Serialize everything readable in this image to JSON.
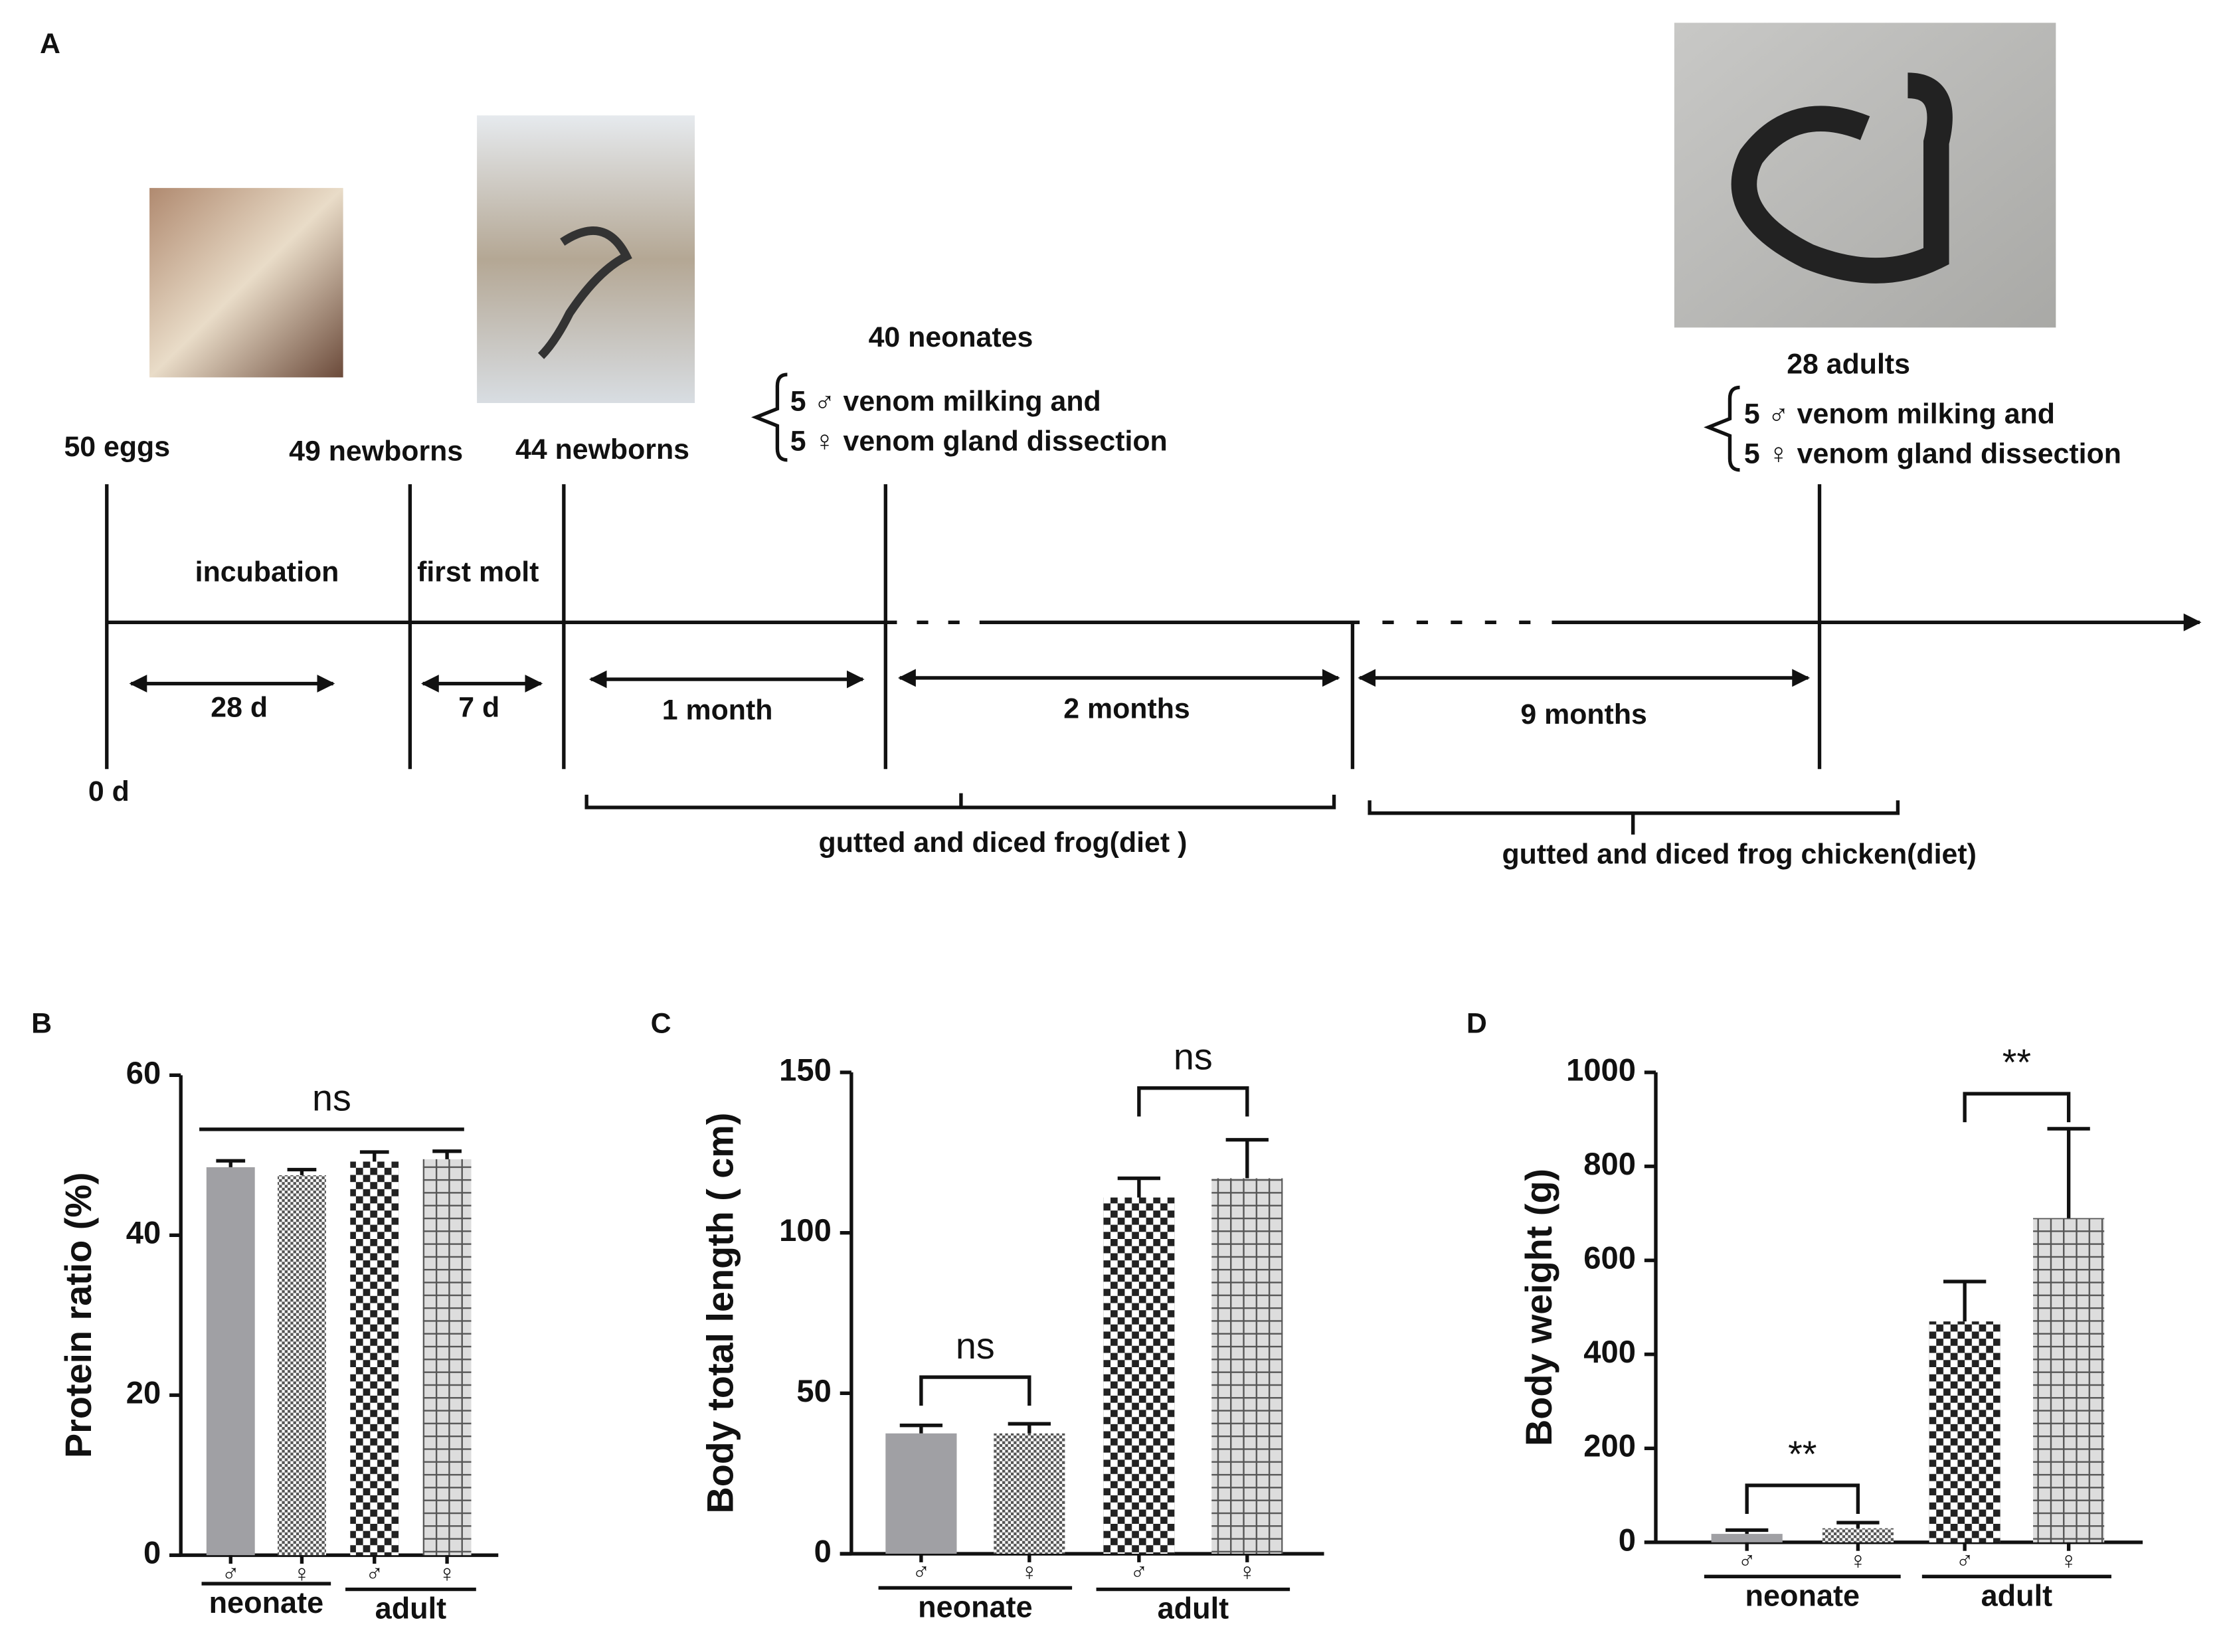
{
  "panel_labels": [
    "A",
    "B",
    "C",
    "D"
  ],
  "timeline": {
    "start": "0 d",
    "events": [
      "50 eggs",
      "49 newborns",
      "44 newborns",
      "40 neonates",
      "28 adults"
    ],
    "neonate_sampling": [
      "5 ♂ venom milking and",
      "5 ♀ venom gland dissection"
    ],
    "adult_sampling": [
      "5 ♂ venom milking and",
      "5 ♀ venom gland dissection"
    ],
    "phases": [
      "incubation",
      "first molt"
    ],
    "durations": [
      "28 d",
      "7 d",
      "1 month",
      "2 months",
      "9 months"
    ],
    "diets": [
      "gutted and diced frog(diet )",
      "gutted and diced frog chicken(diet)"
    ]
  },
  "chart_data": [
    {
      "type": "bar",
      "ylabel": "Protein  ratio (%)",
      "categories": [
        "♂",
        "♀",
        "♂",
        "♀"
      ],
      "groups": [
        "neonate",
        "adult"
      ],
      "values": [
        48.5,
        47.5,
        49.2,
        49.5
      ],
      "errors": [
        0.8,
        0.7,
        1.2,
        1.0
      ],
      "colors": [
        "#a0a0a4",
        "#555555",
        "#222222",
        "#555555"
      ],
      "ylim": [
        0,
        60
      ],
      "yticks": [
        0,
        20,
        40,
        60
      ],
      "annotations": [
        {
          "text": "ns",
          "between": [
            0,
            3
          ]
        }
      ]
    },
    {
      "type": "bar",
      "ylabel": "Body total length ( cm)",
      "categories": [
        "♂",
        "♀",
        "♂",
        "♀"
      ],
      "groups": [
        "neonate",
        "adult"
      ],
      "values": [
        37.5,
        37.5,
        111,
        117
      ],
      "errors": [
        2.5,
        3,
        6,
        12
      ],
      "colors": [
        "#a0a0a4",
        "#555555",
        "#222222",
        "#555555"
      ],
      "ylim": [
        0,
        150
      ],
      "yticks": [
        0,
        50,
        100,
        150
      ],
      "annotations": [
        {
          "text": "ns",
          "between": [
            0,
            1
          ]
        },
        {
          "text": "ns",
          "between": [
            2,
            3
          ]
        }
      ]
    },
    {
      "type": "bar",
      "ylabel": "Body weight (g)",
      "categories": [
        "♂",
        "♀",
        "♂",
        "♀"
      ],
      "groups": [
        "neonate",
        "adult"
      ],
      "values": [
        18,
        30,
        470,
        690
      ],
      "errors": [
        8,
        12,
        85,
        190
      ],
      "colors": [
        "#a0a0a4",
        "#555555",
        "#222222",
        "#555555"
      ],
      "ylim": [
        0,
        1000
      ],
      "yticks": [
        0,
        200,
        400,
        600,
        800,
        1000
      ],
      "annotations": [
        {
          "text": "**",
          "between": [
            0,
            1
          ]
        },
        {
          "text": "**",
          "between": [
            2,
            3
          ]
        }
      ]
    }
  ]
}
